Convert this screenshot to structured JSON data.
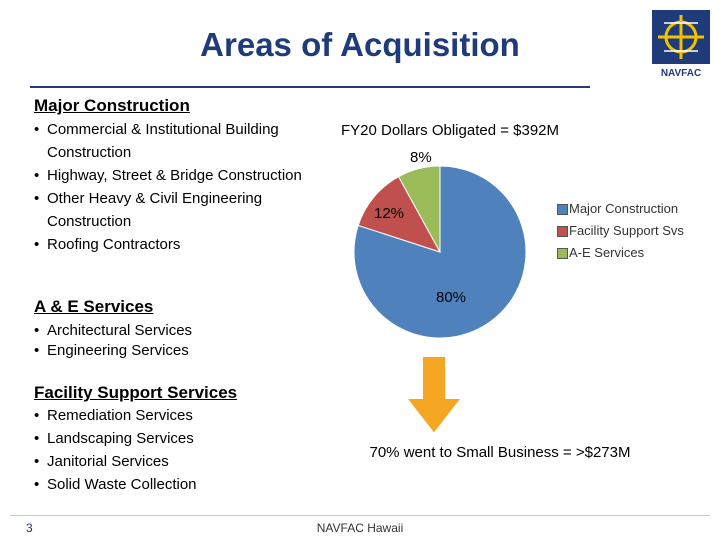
{
  "title": "Areas of Acquisition",
  "logo": {
    "text": "NAVFAC"
  },
  "sections": [
    {
      "heading": "Major Construction",
      "items": [
        "Commercial & Institutional Building Construction",
        "Highway, Street & Bridge Construction",
        "Other Heavy & Civil Engineering Construction",
        "Roofing Contractors"
      ]
    },
    {
      "heading": "A & E Services",
      "items": [
        "Architectural Services",
        "Engineering Services"
      ]
    },
    {
      "heading": "Facility Support Services",
      "items": [
        "Remediation Services",
        "Landscaping Services",
        "Janitorial Services",
        "Solid Waste Collection"
      ]
    }
  ],
  "chart_data": {
    "type": "pie",
    "title": "FY20 Dollars Obligated = $392M",
    "categories": [
      "Major Construction",
      "Facility Support Svs",
      "A-E Services"
    ],
    "values": [
      80,
      12,
      8
    ],
    "labels": [
      "80%",
      "12%",
      "8%"
    ],
    "colors": [
      "#4f81bd",
      "#c0504d",
      "#9bbb59"
    ],
    "legend_position": "right"
  },
  "summary": "70% went to Small Business = >$273M",
  "arrow_color": "#f5a623",
  "footer": {
    "page_number": "3",
    "text": "NAVFAC Hawaii"
  }
}
